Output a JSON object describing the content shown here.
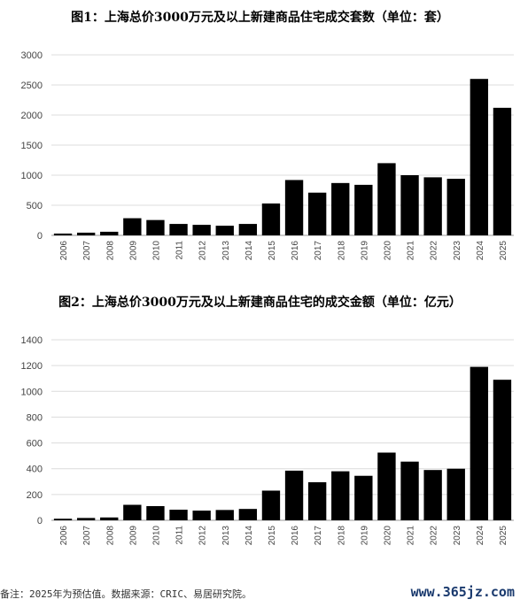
{
  "chart_data": [
    {
      "type": "bar",
      "title": "图1：上海总价3000万元及以上新建商品住宅成交套数（单位：套）",
      "categories": [
        "2006",
        "2007",
        "2008",
        "2009",
        "2010",
        "2011",
        "2012",
        "2013",
        "2014",
        "2015",
        "2016",
        "2017",
        "2018",
        "2019",
        "2020",
        "2021",
        "2022",
        "2023",
        "2024",
        "2025"
      ],
      "values": [
        30,
        45,
        60,
        285,
        255,
        190,
        175,
        160,
        190,
        530,
        920,
        710,
        870,
        840,
        1200,
        1000,
        965,
        940,
        2600,
        2120
      ],
      "ylim": [
        0,
        3000
      ],
      "yticks": [
        0,
        500,
        1000,
        1500,
        2000,
        2500,
        3000
      ],
      "grid": true,
      "bar_color": "#000000"
    },
    {
      "type": "bar",
      "title": "图2：上海总价3000万元及以上新建商品住宅的成交金额（单位：亿元）",
      "categories": [
        "2006",
        "2007",
        "2008",
        "2009",
        "2010",
        "2011",
        "2012",
        "2013",
        "2014",
        "2015",
        "2016",
        "2017",
        "2018",
        "2019",
        "2020",
        "2021",
        "2022",
        "2023",
        "2024",
        "2025"
      ],
      "values": [
        12,
        18,
        22,
        120,
        110,
        82,
        75,
        80,
        88,
        230,
        385,
        295,
        380,
        345,
        525,
        455,
        390,
        400,
        1190,
        1090
      ],
      "ylim": [
        0,
        1400
      ],
      "yticks": [
        0,
        200,
        400,
        600,
        800,
        1000,
        1200,
        1400
      ],
      "grid": true,
      "bar_color": "#000000"
    }
  ],
  "footnote": "备注：2025年为预估值。数据来源：CRIC、易居研究院。",
  "watermark": "www.365jz.com"
}
